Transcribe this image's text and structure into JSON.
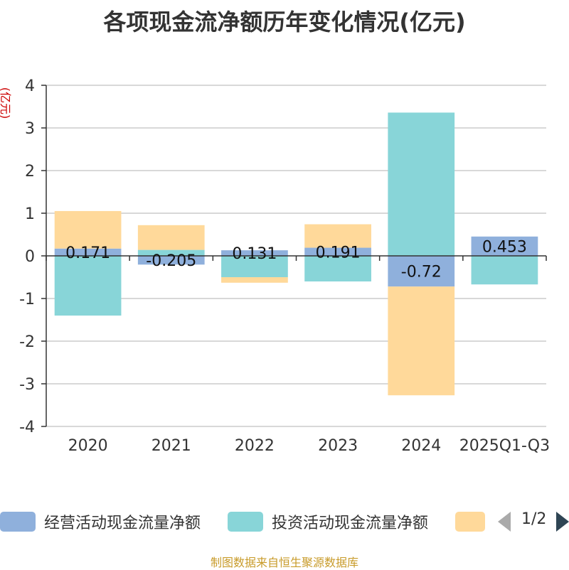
{
  "chart_data": {
    "type": "bar",
    "stacked": true,
    "title": "各项现金流净额历年变化情况(亿元)",
    "ylabel": "(亿元)",
    "ylim": [
      -4,
      4
    ],
    "yticks": [
      4,
      3,
      2,
      1,
      0,
      -1,
      -2,
      -3,
      -4
    ],
    "categories": [
      "2020",
      "2021",
      "2022",
      "2023",
      "2024",
      "2025Q1-Q3"
    ],
    "series": [
      {
        "name": "经营活动现金流量净额",
        "color": "#8fb0dc",
        "values": [
          0.171,
          -0.205,
          0.131,
          0.191,
          -0.72,
          0.453
        ],
        "labels": [
          "0.171",
          "-0.205",
          "0.131",
          "0.191",
          "-0.72",
          "0.453"
        ]
      },
      {
        "name": "投资活动现金流量净额",
        "color": "#88d5d8",
        "values": [
          -1.4,
          0.14,
          -0.5,
          -0.6,
          3.36,
          -0.67
        ]
      },
      {
        "name": "",
        "color": "#ffd99a",
        "values": [
          0.88,
          0.58,
          -0.13,
          0.55,
          -2.55,
          0
        ]
      }
    ],
    "legend_position": "bottom",
    "grid": true
  },
  "legend": {
    "page": "1/2"
  },
  "source": "制图数据来自恒生聚源数据库"
}
